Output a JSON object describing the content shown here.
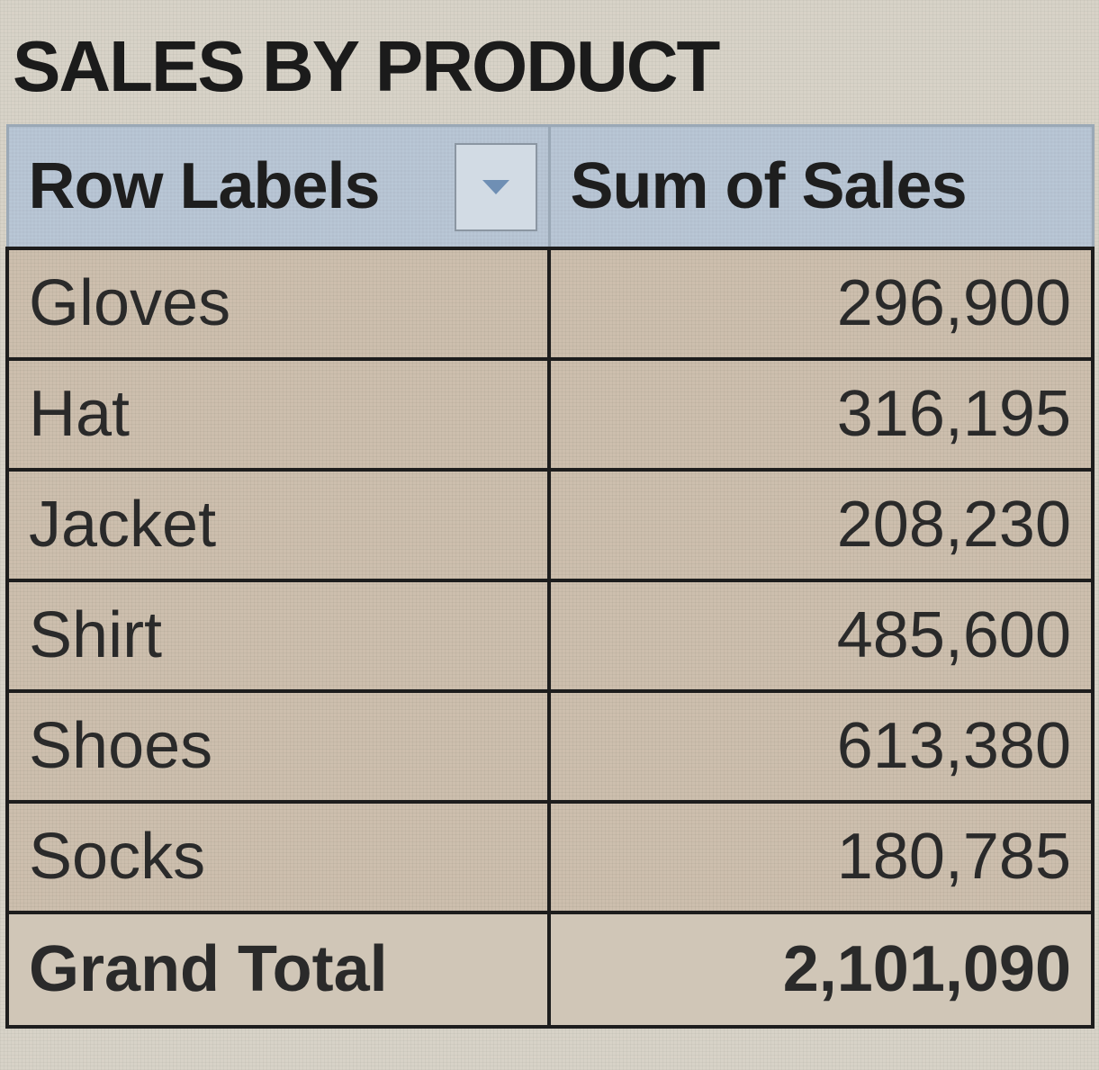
{
  "pivot": {
    "title": "SALES BY PRODUCT",
    "header": {
      "row_labels": "Row Labels",
      "value_label": "Sum of Sales",
      "filter_icon": "dropdown-arrow-icon"
    },
    "rows": [
      {
        "label": "Gloves",
        "value": "296,900"
      },
      {
        "label": "Hat",
        "value": "316,195"
      },
      {
        "label": "Jacket",
        "value": "208,230"
      },
      {
        "label": "Shirt",
        "value": "485,600"
      },
      {
        "label": "Shoes",
        "value": "613,380"
      },
      {
        "label": "Socks",
        "value": "180,785"
      }
    ],
    "grand_total": {
      "label": "Grand Total",
      "value": "2,101,090"
    }
  },
  "colors": {
    "header_bg": "#b9c7d6",
    "cell_bg": "#cdbfae",
    "border": "#1d1d1d",
    "filter_arrow": "#6f8fb4"
  }
}
